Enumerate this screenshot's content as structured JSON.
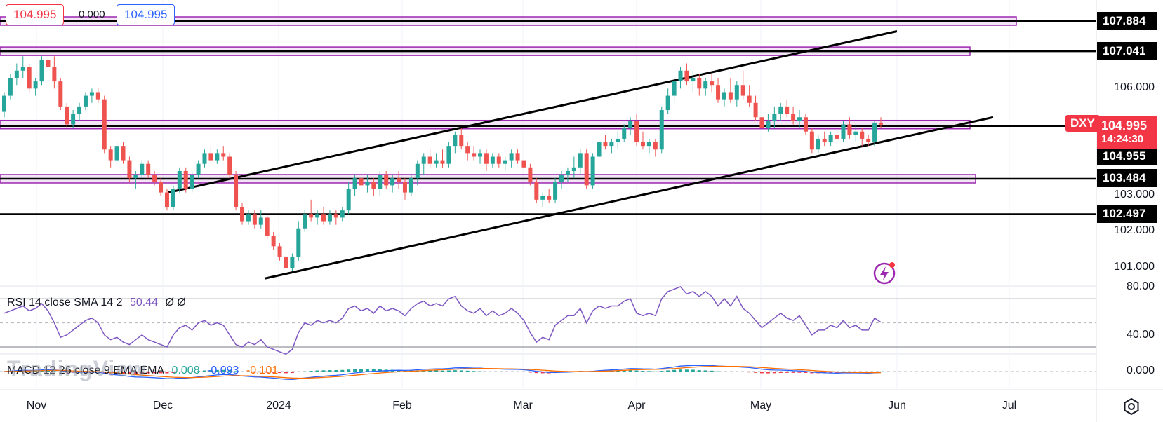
{
  "header": {
    "bid": "104.995",
    "spread": "0.000",
    "ask": "104.995"
  },
  "symbol": "DXY",
  "chart_data": {
    "type": "candlestick",
    "symbol": "DXY",
    "x_axis_labels": [
      "Nov",
      "Dec",
      "2024",
      "Feb",
      "Mar",
      "Apr",
      "May",
      "Jun",
      "Jul"
    ],
    "price_axis_labels": [
      "106.000",
      "103.000",
      "102.000",
      "101.000"
    ],
    "rsi_axis_labels": [
      "80.00",
      "40.00"
    ],
    "macd_axis_labels": [
      "0.000"
    ],
    "last_price": 104.995,
    "countdown": "14:24:30",
    "levels": [
      {
        "label": "107.884",
        "value": 107.884
      },
      {
        "label": "107.041",
        "value": 107.041
      },
      {
        "label": "104.955",
        "value": 104.955
      },
      {
        "label": "103.484",
        "value": 103.484
      },
      {
        "label": "102.497",
        "value": 102.497
      }
    ],
    "ohlc": [
      [
        105.35,
        105.9,
        105.2,
        105.8
      ],
      [
        105.8,
        106.4,
        105.7,
        106.3
      ],
      [
        106.3,
        106.7,
        106.1,
        106.5
      ],
      [
        106.5,
        106.9,
        106.3,
        106.6
      ],
      [
        106.6,
        106.7,
        105.9,
        106.0
      ],
      [
        106.0,
        106.3,
        105.8,
        106.2
      ],
      [
        106.2,
        106.9,
        106.1,
        106.8
      ],
      [
        106.8,
        107.1,
        106.5,
        106.6
      ],
      [
        106.6,
        106.9,
        106.0,
        106.2
      ],
      [
        106.2,
        106.3,
        105.4,
        105.5
      ],
      [
        105.5,
        105.6,
        104.9,
        105.0
      ],
      [
        105.0,
        105.4,
        104.9,
        105.3
      ],
      [
        105.3,
        105.6,
        105.1,
        105.5
      ],
      [
        105.5,
        105.9,
        105.4,
        105.8
      ],
      [
        105.8,
        106.0,
        105.6,
        105.9
      ],
      [
        105.9,
        106.0,
        105.6,
        105.7
      ],
      [
        105.7,
        105.8,
        104.2,
        104.3
      ],
      [
        104.3,
        104.4,
        103.8,
        104.0
      ],
      [
        104.0,
        104.5,
        103.9,
        104.4
      ],
      [
        104.4,
        104.5,
        103.9,
        104.0
      ],
      [
        104.0,
        104.1,
        103.4,
        103.5
      ],
      [
        103.5,
        103.7,
        103.2,
        103.6
      ],
      [
        103.6,
        104.0,
        103.5,
        103.9
      ],
      [
        103.9,
        104.0,
        103.5,
        103.6
      ],
      [
        103.6,
        103.7,
        103.3,
        103.4
      ],
      [
        103.4,
        103.5,
        103.0,
        103.1
      ],
      [
        103.1,
        103.2,
        102.6,
        102.7
      ],
      [
        102.7,
        103.3,
        102.6,
        103.2
      ],
      [
        103.2,
        103.8,
        103.1,
        103.7
      ],
      [
        103.7,
        103.8,
        103.1,
        103.2
      ],
      [
        103.2,
        103.7,
        103.1,
        103.6
      ],
      [
        103.6,
        104.0,
        103.5,
        103.9
      ],
      [
        103.9,
        104.3,
        103.8,
        104.2
      ],
      [
        104.2,
        104.4,
        103.9,
        104.0
      ],
      [
        104.0,
        104.3,
        103.9,
        104.2
      ],
      [
        104.2,
        104.4,
        104.0,
        104.1
      ],
      [
        104.1,
        104.2,
        103.5,
        103.6
      ],
      [
        103.6,
        103.7,
        102.6,
        102.7
      ],
      [
        102.7,
        102.8,
        102.2,
        102.3
      ],
      [
        102.3,
        102.6,
        102.2,
        102.5
      ],
      [
        102.5,
        102.6,
        102.1,
        102.2
      ],
      [
        102.2,
        102.6,
        102.1,
        102.4
      ],
      [
        102.4,
        102.5,
        101.8,
        101.9
      ],
      [
        101.9,
        102.0,
        101.5,
        101.6
      ],
      [
        101.6,
        101.7,
        101.2,
        101.3
      ],
      [
        101.3,
        101.4,
        100.9,
        101.0
      ],
      [
        101.0,
        101.4,
        100.9,
        101.3
      ],
      [
        101.3,
        102.3,
        101.2,
        102.1
      ],
      [
        102.1,
        102.6,
        102.0,
        102.5
      ],
      [
        102.5,
        102.9,
        102.3,
        102.4
      ],
      [
        102.4,
        102.6,
        102.2,
        102.5
      ],
      [
        102.5,
        102.7,
        102.2,
        102.3
      ],
      [
        102.3,
        102.6,
        102.2,
        102.5
      ],
      [
        102.5,
        102.6,
        102.2,
        102.4
      ],
      [
        102.4,
        102.7,
        102.3,
        102.6
      ],
      [
        102.6,
        103.4,
        102.5,
        103.2
      ],
      [
        103.2,
        103.6,
        103.0,
        103.5
      ],
      [
        103.5,
        103.7,
        103.2,
        103.3
      ],
      [
        103.3,
        103.6,
        103.1,
        103.4
      ],
      [
        103.4,
        103.5,
        103.0,
        103.2
      ],
      [
        103.2,
        103.7,
        103.0,
        103.6
      ],
      [
        103.6,
        103.7,
        103.2,
        103.3
      ],
      [
        103.3,
        103.6,
        103.1,
        103.5
      ],
      [
        103.5,
        103.7,
        103.2,
        103.4
      ],
      [
        103.4,
        103.5,
        102.9,
        103.1
      ],
      [
        103.1,
        103.6,
        103.0,
        103.5
      ],
      [
        103.5,
        104.0,
        103.3,
        103.9
      ],
      [
        103.9,
        104.2,
        103.6,
        104.1
      ],
      [
        104.1,
        104.3,
        103.8,
        103.9
      ],
      [
        103.9,
        104.2,
        103.8,
        104.0
      ],
      [
        104.0,
        104.3,
        103.8,
        103.9
      ],
      [
        103.9,
        104.5,
        103.8,
        104.4
      ],
      [
        104.4,
        104.8,
        104.2,
        104.7
      ],
      [
        104.7,
        104.9,
        104.3,
        104.4
      ],
      [
        104.4,
        104.5,
        104.0,
        104.2
      ],
      [
        104.2,
        104.4,
        104.0,
        104.1
      ],
      [
        104.1,
        104.3,
        103.9,
        104.2
      ],
      [
        104.2,
        104.3,
        103.7,
        103.9
      ],
      [
        103.9,
        104.2,
        103.8,
        104.1
      ],
      [
        104.1,
        104.2,
        103.8,
        103.9
      ],
      [
        103.9,
        104.1,
        103.7,
        104.0
      ],
      [
        104.0,
        104.3,
        103.8,
        104.2
      ],
      [
        104.2,
        104.3,
        103.9,
        104.0
      ],
      [
        104.0,
        104.1,
        103.6,
        103.8
      ],
      [
        103.8,
        103.9,
        103.3,
        103.4
      ],
      [
        103.4,
        103.5,
        102.8,
        102.9
      ],
      [
        102.9,
        103.1,
        102.7,
        103.0
      ],
      [
        103.0,
        103.2,
        102.8,
        102.9
      ],
      [
        102.9,
        103.5,
        102.8,
        103.4
      ],
      [
        103.4,
        103.7,
        103.2,
        103.6
      ],
      [
        103.6,
        103.8,
        103.4,
        103.7
      ],
      [
        103.7,
        104.1,
        103.5,
        103.8
      ],
      [
        103.8,
        104.3,
        103.6,
        104.2
      ],
      [
        104.2,
        104.3,
        103.2,
        103.3
      ],
      [
        103.3,
        104.2,
        103.2,
        104.1
      ],
      [
        104.1,
        104.6,
        103.9,
        104.5
      ],
      [
        104.5,
        104.7,
        104.3,
        104.4
      ],
      [
        104.4,
        104.6,
        104.2,
        104.5
      ],
      [
        104.5,
        104.8,
        104.3,
        104.6
      ],
      [
        104.6,
        105.0,
        104.5,
        104.9
      ],
      [
        104.9,
        105.2,
        104.7,
        105.1
      ],
      [
        105.1,
        105.3,
        104.4,
        104.5
      ],
      [
        104.5,
        104.8,
        104.3,
        104.4
      ],
      [
        104.4,
        104.6,
        104.2,
        104.5
      ],
      [
        104.5,
        104.6,
        104.1,
        104.3
      ],
      [
        104.3,
        105.5,
        104.2,
        105.4
      ],
      [
        105.4,
        106.0,
        105.3,
        105.8
      ],
      [
        105.8,
        106.3,
        105.6,
        106.2
      ],
      [
        106.2,
        106.6,
        106.0,
        106.5
      ],
      [
        106.5,
        106.7,
        106.1,
        106.2
      ],
      [
        106.2,
        106.5,
        105.9,
        106.3
      ],
      [
        106.3,
        106.4,
        105.8,
        106.0
      ],
      [
        106.0,
        106.3,
        105.8,
        106.2
      ],
      [
        106.2,
        106.4,
        105.9,
        106.1
      ],
      [
        106.1,
        106.3,
        105.6,
        105.7
      ],
      [
        105.7,
        106.0,
        105.5,
        105.9
      ],
      [
        105.9,
        106.3,
        105.6,
        105.7
      ],
      [
        105.7,
        106.2,
        105.5,
        106.1
      ],
      [
        106.1,
        106.5,
        105.7,
        105.8
      ],
      [
        105.8,
        106.1,
        105.5,
        105.6
      ],
      [
        105.6,
        105.8,
        105.1,
        105.2
      ],
      [
        105.2,
        105.4,
        104.7,
        104.9
      ],
      [
        104.9,
        105.3,
        104.8,
        105.1
      ],
      [
        105.1,
        105.5,
        104.9,
        105.3
      ],
      [
        105.3,
        105.6,
        105.1,
        105.5
      ],
      [
        105.5,
        105.7,
        105.2,
        105.3
      ],
      [
        105.3,
        105.5,
        105.0,
        105.1
      ],
      [
        105.1,
        105.4,
        104.9,
        105.2
      ],
      [
        105.2,
        105.3,
        104.7,
        104.8
      ],
      [
        104.8,
        104.9,
        104.2,
        104.3
      ],
      [
        104.3,
        104.7,
        104.2,
        104.6
      ],
      [
        104.6,
        104.8,
        104.4,
        104.5
      ],
      [
        104.5,
        104.8,
        104.4,
        104.7
      ],
      [
        104.7,
        104.9,
        104.5,
        104.6
      ],
      [
        104.6,
        105.1,
        104.5,
        105.0
      ],
      [
        105.0,
        105.2,
        104.6,
        104.7
      ],
      [
        104.7,
        105.0,
        104.5,
        104.8
      ],
      [
        104.8,
        104.9,
        104.4,
        104.6
      ],
      [
        104.6,
        104.7,
        104.4,
        104.5
      ],
      [
        104.5,
        105.1,
        104.4,
        105.05
      ],
      [
        105.05,
        105.2,
        104.9,
        104.995
      ]
    ],
    "rsi": {
      "title": "RSI 14 close SMA 14 2",
      "value": "50.44",
      "extra": "Ø Ø",
      "upper": 70,
      "lower": 30,
      "values": [
        58,
        60,
        62,
        64,
        60,
        62,
        66,
        60,
        50,
        38,
        40,
        44,
        48,
        52,
        54,
        50,
        40,
        36,
        38,
        34,
        32,
        36,
        40,
        36,
        34,
        32,
        30,
        40,
        46,
        48,
        44,
        50,
        52,
        48,
        50,
        48,
        40,
        32,
        30,
        34,
        32,
        36,
        30,
        28,
        26,
        24,
        28,
        42,
        50,
        48,
        52,
        50,
        52,
        50,
        54,
        62,
        64,
        60,
        62,
        58,
        64,
        60,
        62,
        60,
        56,
        62,
        66,
        68,
        64,
        66,
        64,
        70,
        72,
        64,
        60,
        58,
        62,
        56,
        60,
        56,
        58,
        62,
        58,
        52,
        42,
        34,
        38,
        36,
        48,
        52,
        56,
        56,
        62,
        50,
        60,
        64,
        62,
        64,
        64,
        68,
        70,
        58,
        56,
        58,
        56,
        70,
        76,
        78,
        80,
        74,
        76,
        72,
        76,
        72,
        64,
        70,
        64,
        72,
        62,
        58,
        52,
        46,
        50,
        54,
        58,
        54,
        52,
        56,
        48,
        40,
        44,
        44,
        48,
        46,
        52,
        46,
        48,
        44,
        44,
        54,
        50.44
      ]
    },
    "macd": {
      "title": "MACD 12 26 close 9 EMA EMA",
      "histogram": "0.008",
      "macd": "-0.093",
      "signal": "-0.101",
      "colors": {
        "macd": "#2962ff",
        "signal": "#ff6d00",
        "hist_pos": "#26a69a",
        "hist_neg": "#f23645"
      }
    }
  },
  "watermark": "TradingView",
  "icons": {
    "settings": "gear-icon",
    "flash": "flash-icon"
  },
  "colors": {
    "up": "#26a69a",
    "down": "#ef5350",
    "zone": "#9c27b0",
    "rsi": "#7e57c2"
  }
}
